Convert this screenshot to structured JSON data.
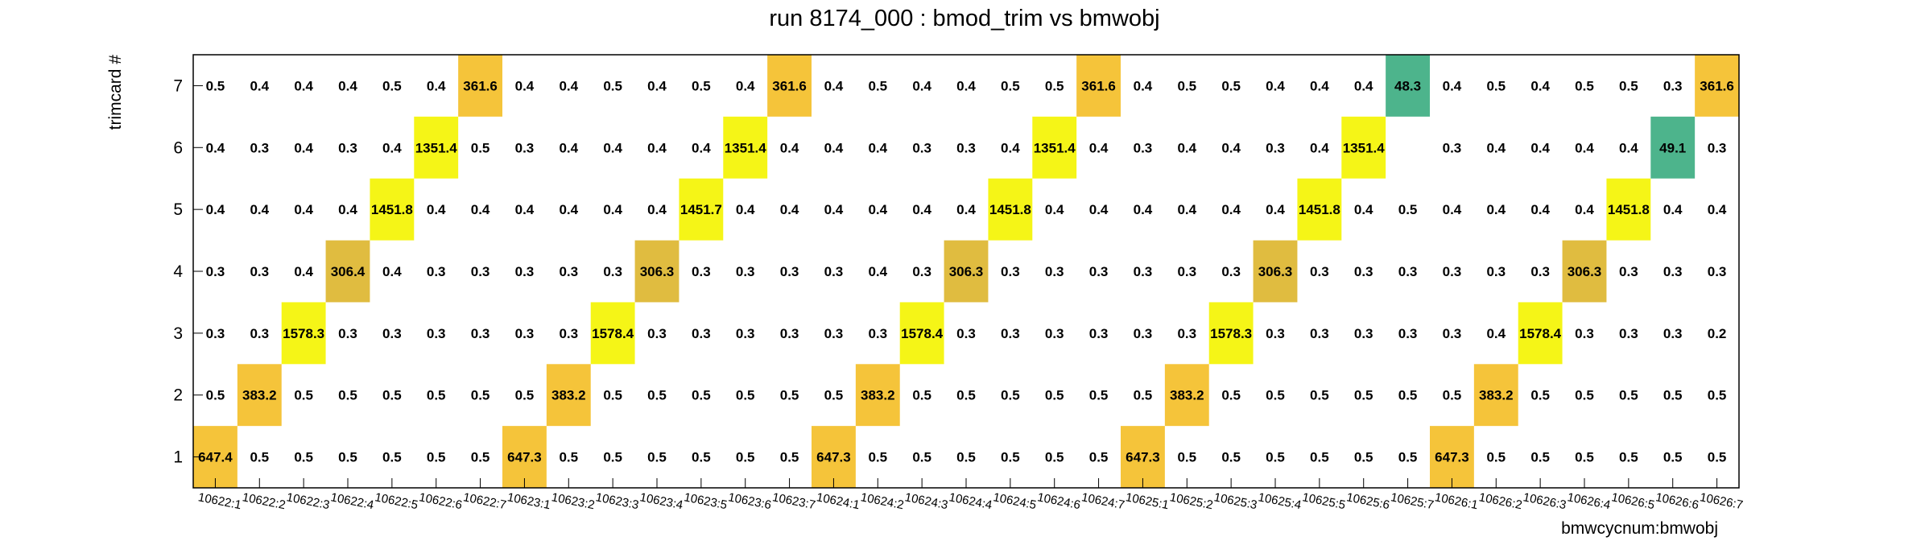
{
  "chart_data": {
    "type": "heatmap",
    "title": "run 8174_000 : bmod_trim vs bmwobj",
    "xlabel": "bmwcycnum:bmwobj",
    "ylabel": "trimcard #",
    "x_categories": [
      "10622:1",
      "10622:2",
      "10622:3",
      "10622:4",
      "10622:5",
      "10622:6",
      "10622:7",
      "10623:1",
      "10623:2",
      "10623:3",
      "10623:4",
      "10623:5",
      "10623:6",
      "10623:7",
      "10624:1",
      "10624:2",
      "10624:3",
      "10624:4",
      "10624:5",
      "10624:6",
      "10624:7",
      "10625:1",
      "10625:2",
      "10625:3",
      "10625:4",
      "10625:5",
      "10625:6",
      "10625:7",
      "10626:1",
      "10626:2",
      "10626:3",
      "10626:4",
      "10626:5",
      "10626:6",
      "10626:7"
    ],
    "y_categories": [
      "1",
      "2",
      "3",
      "4",
      "5",
      "6",
      "7"
    ],
    "colors": {
      "bright_yellow": "#f5f517",
      "gold": "#f5c43a",
      "olive_gold": "#e0bc40",
      "green": "#4db48c",
      "low": "#ffffff",
      "frame": "#000000"
    },
    "rows": [
      {
        "y": "1",
        "values": [
          647.4,
          0.5,
          0.5,
          0.5,
          0.5,
          0.5,
          0.5,
          647.3,
          0.5,
          0.5,
          0.5,
          0.5,
          0.5,
          0.5,
          647.3,
          0.5,
          0.5,
          0.5,
          0.5,
          0.5,
          0.5,
          647.3,
          0.5,
          0.5,
          0.5,
          0.5,
          0.5,
          0.5,
          647.3,
          0.5,
          0.5,
          0.5,
          0.5,
          0.5,
          0.5
        ]
      },
      {
        "y": "2",
        "values": [
          0.5,
          383.2,
          0.5,
          0.5,
          0.5,
          0.5,
          0.5,
          0.5,
          383.2,
          0.5,
          0.5,
          0.5,
          0.5,
          0.5,
          0.5,
          383.2,
          0.5,
          0.5,
          0.5,
          0.5,
          0.5,
          0.5,
          383.2,
          0.5,
          0.5,
          0.5,
          0.5,
          0.5,
          0.5,
          383.2,
          0.5,
          0.5,
          0.5,
          0.5,
          0.5
        ]
      },
      {
        "y": "3",
        "values": [
          0.3,
          0.3,
          1578.3,
          0.3,
          0.3,
          0.3,
          0.3,
          0.3,
          0.3,
          1578.4,
          0.3,
          0.3,
          0.3,
          0.3,
          0.3,
          0.3,
          1578.4,
          0.3,
          0.3,
          0.3,
          0.3,
          0.3,
          0.3,
          1578.3,
          0.3,
          0.3,
          0.3,
          0.3,
          0.3,
          0.4,
          1578.4,
          0.3,
          0.3,
          0.3,
          0.2
        ]
      },
      {
        "y": "4",
        "values": [
          0.3,
          0.3,
          0.4,
          306.4,
          0.4,
          0.3,
          0.3,
          0.3,
          0.3,
          0.3,
          306.3,
          0.3,
          0.3,
          0.3,
          0.3,
          0.4,
          0.3,
          306.3,
          0.3,
          0.3,
          0.3,
          0.3,
          0.3,
          0.3,
          306.3,
          0.3,
          0.3,
          0.3,
          0.3,
          0.3,
          0.3,
          306.3,
          0.3,
          0.3,
          0.3
        ]
      },
      {
        "y": "5",
        "values": [
          0.4,
          0.4,
          0.4,
          0.4,
          1451.8,
          0.4,
          0.4,
          0.4,
          0.4,
          0.4,
          0.4,
          1451.7,
          0.4,
          0.4,
          0.4,
          0.4,
          0.4,
          0.4,
          1451.8,
          0.4,
          0.4,
          0.4,
          0.4,
          0.4,
          0.4,
          1451.8,
          0.4,
          0.5,
          0.4,
          0.4,
          0.4,
          0.4,
          1451.8,
          0.4,
          0.4
        ]
      },
      {
        "y": "6",
        "values": [
          0.4,
          0.3,
          0.4,
          0.3,
          0.4,
          1351.4,
          0.5,
          0.3,
          0.4,
          0.4,
          0.4,
          0.4,
          1351.4,
          0.4,
          0.4,
          0.4,
          0.3,
          0.3,
          0.4,
          1351.4,
          0.4,
          0.3,
          0.4,
          0.4,
          0.3,
          0.4,
          1351.4,
          null,
          0.3,
          0.4,
          0.4,
          0.4,
          0.4,
          49.1,
          0.3
        ]
      },
      {
        "y": "7",
        "values": [
          0.5,
          0.4,
          0.4,
          0.4,
          0.5,
          0.4,
          361.6,
          0.4,
          0.4,
          0.5,
          0.4,
          0.5,
          0.4,
          361.6,
          0.4,
          0.5,
          0.4,
          0.4,
          0.5,
          0.5,
          361.6,
          0.4,
          0.5,
          0.5,
          0.4,
          0.4,
          0.4,
          48.3,
          0.4,
          0.5,
          0.4,
          0.5,
          0.5,
          0.3,
          361.6
        ]
      }
    ]
  }
}
